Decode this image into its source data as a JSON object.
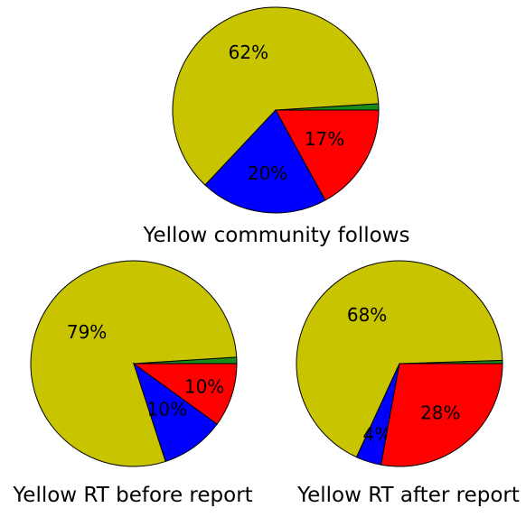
{
  "chart_data": [
    {
      "type": "pie",
      "title": "Yellow community follows",
      "slices": [
        {
          "value": 62,
          "label": "62%",
          "color": "#c8c400"
        },
        {
          "value": 20,
          "label": "20%",
          "color": "#0000ff"
        },
        {
          "value": 17,
          "label": "17%",
          "color": "#ff0000"
        },
        {
          "value": 1,
          "label": "",
          "color": "#1a8a1a"
        }
      ]
    },
    {
      "type": "pie",
      "title": "Yellow RT before report",
      "slices": [
        {
          "value": 79,
          "label": "79%",
          "color": "#c8c400"
        },
        {
          "value": 10,
          "label": "10%",
          "color": "#0000ff"
        },
        {
          "value": 10,
          "label": "10%",
          "color": "#ff0000"
        },
        {
          "value": 1,
          "label": "",
          "color": "#1a8a1a"
        }
      ]
    },
    {
      "type": "pie",
      "title": "Yellow RT after report",
      "slices": [
        {
          "value": 68,
          "label": "68%",
          "color": "#c8c400"
        },
        {
          "value": 4,
          "label": "4%",
          "color": "#0000ff"
        },
        {
          "value": 28,
          "label": "28%",
          "color": "#ff0000"
        },
        {
          "value": 0.5,
          "label": "",
          "color": "#1a8a1a"
        }
      ]
    }
  ]
}
